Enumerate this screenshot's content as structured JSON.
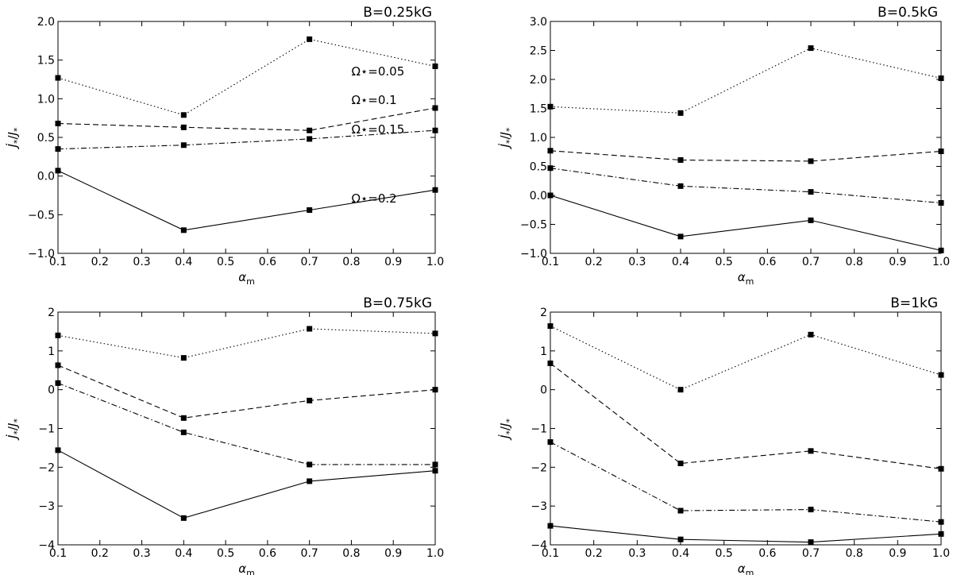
{
  "chart_data": [
    {
      "type": "line",
      "title": "B=0.25kG",
      "xlabel": "α_m",
      "ylabel": "J̇*/J*",
      "x": [
        0.1,
        0.4,
        0.7,
        1.0
      ],
      "xlim": [
        0.1,
        1.0
      ],
      "ylim": [
        -1.0,
        2.0
      ],
      "xticks": [
        "0.1",
        "0.2",
        "0.3",
        "0.4",
        "0.5",
        "0.6",
        "0.7",
        "0.8",
        "0.9",
        "1.0"
      ],
      "yticks": [
        "−1.0",
        "−0.5",
        "0.0",
        "0.5",
        "1.0",
        "1.5",
        "2.0"
      ],
      "series": [
        {
          "name": "Ω*=0.05",
          "style": "dotted",
          "values": [
            1.27,
            0.79,
            1.77,
            1.42
          ]
        },
        {
          "name": "Ω*=0.1",
          "style": "dashed",
          "values": [
            0.68,
            0.63,
            0.59,
            0.88
          ]
        },
        {
          "name": "Ω*=0.15",
          "style": "dashdot",
          "values": [
            0.35,
            0.4,
            0.48,
            0.59
          ]
        },
        {
          "name": "Ω*=0.2",
          "style": "solid",
          "values": [
            0.07,
            -0.7,
            -0.44,
            -0.18
          ]
        }
      ],
      "annotations": [
        {
          "text": "Ω⋆=0.05",
          "x": 0.8,
          "y": 1.3
        },
        {
          "text": "Ω⋆=0.1",
          "x": 0.8,
          "y": 0.93
        },
        {
          "text": "Ω⋆=0.15",
          "x": 0.8,
          "y": 0.55
        },
        {
          "text": "Ω⋆=0.2",
          "x": 0.8,
          "y": -0.34
        }
      ]
    },
    {
      "type": "line",
      "title": "B=0.5kG",
      "xlabel": "α_m",
      "ylabel": "J̇*/J*",
      "x": [
        0.1,
        0.4,
        0.7,
        1.0
      ],
      "xlim": [
        0.1,
        1.0
      ],
      "ylim": [
        -1.0,
        3.0
      ],
      "xticks": [
        "0.1",
        "0.2",
        "0.3",
        "0.4",
        "0.5",
        "0.6",
        "0.7",
        "0.8",
        "0.9",
        "1.0"
      ],
      "yticks": [
        "−1.0",
        "−0.5",
        "0.0",
        "0.5",
        "1.0",
        "1.5",
        "2.0",
        "2.5",
        "3.0"
      ],
      "series": [
        {
          "name": "Ω*=0.05",
          "style": "dotted",
          "values": [
            1.53,
            1.42,
            2.54,
            2.02
          ]
        },
        {
          "name": "Ω*=0.1",
          "style": "dashed",
          "values": [
            0.77,
            0.61,
            0.59,
            0.76
          ]
        },
        {
          "name": "Ω*=0.15",
          "style": "dashdot",
          "values": [
            0.47,
            0.16,
            0.06,
            -0.13
          ]
        },
        {
          "name": "Ω*=0.2",
          "style": "solid",
          "values": [
            0.0,
            -0.71,
            -0.43,
            -0.95
          ]
        }
      ],
      "annotations": []
    },
    {
      "type": "line",
      "title": "B=0.75kG",
      "xlabel": "α_m",
      "ylabel": "J̇*/J*",
      "x": [
        0.1,
        0.4,
        0.7,
        1.0
      ],
      "xlim": [
        0.1,
        1.0
      ],
      "ylim": [
        -4,
        2
      ],
      "xticks": [
        "0.1",
        "0.2",
        "0.3",
        "0.4",
        "0.5",
        "0.6",
        "0.7",
        "0.8",
        "0.9",
        "1.0"
      ],
      "yticks": [
        "−4",
        "−3",
        "−2",
        "−1",
        "0",
        "1",
        "2"
      ],
      "series": [
        {
          "name": "Ω*=0.05",
          "style": "dotted",
          "values": [
            1.4,
            0.82,
            1.57,
            1.45
          ]
        },
        {
          "name": "Ω*=0.1",
          "style": "dashed",
          "values": [
            0.63,
            -0.73,
            -0.28,
            0.0
          ]
        },
        {
          "name": "Ω*=0.15",
          "style": "dashdot",
          "values": [
            0.17,
            -1.1,
            -1.93,
            -1.93
          ]
        },
        {
          "name": "Ω*=0.2",
          "style": "solid",
          "values": [
            -1.56,
            -3.31,
            -2.36,
            -2.09
          ]
        }
      ],
      "annotations": []
    },
    {
      "type": "line",
      "title": "B=1kG",
      "xlabel": "α_m",
      "ylabel": "J̇*/J*",
      "x": [
        0.1,
        0.4,
        0.7,
        1.0
      ],
      "xlim": [
        0.1,
        1.0
      ],
      "ylim": [
        -4,
        2
      ],
      "xticks": [
        "0.1",
        "0.2",
        "0.3",
        "0.4",
        "0.5",
        "0.6",
        "0.7",
        "0.8",
        "0.9",
        "1.0"
      ],
      "yticks": [
        "−4",
        "−3",
        "−2",
        "−1",
        "0",
        "1",
        "2"
      ],
      "series": [
        {
          "name": "Ω*=0.05",
          "style": "dotted",
          "values": [
            1.64,
            0.0,
            1.42,
            0.38
          ]
        },
        {
          "name": "Ω*=0.1",
          "style": "dashed",
          "values": [
            0.68,
            -1.9,
            -1.58,
            -2.04
          ]
        },
        {
          "name": "Ω*=0.15",
          "style": "dashdot",
          "values": [
            -1.35,
            -3.12,
            -3.09,
            -3.41
          ]
        },
        {
          "name": "Ω*=0.2",
          "style": "solid",
          "values": [
            -3.51,
            -3.86,
            -3.93,
            -3.72
          ]
        }
      ],
      "annotations": []
    }
  ]
}
